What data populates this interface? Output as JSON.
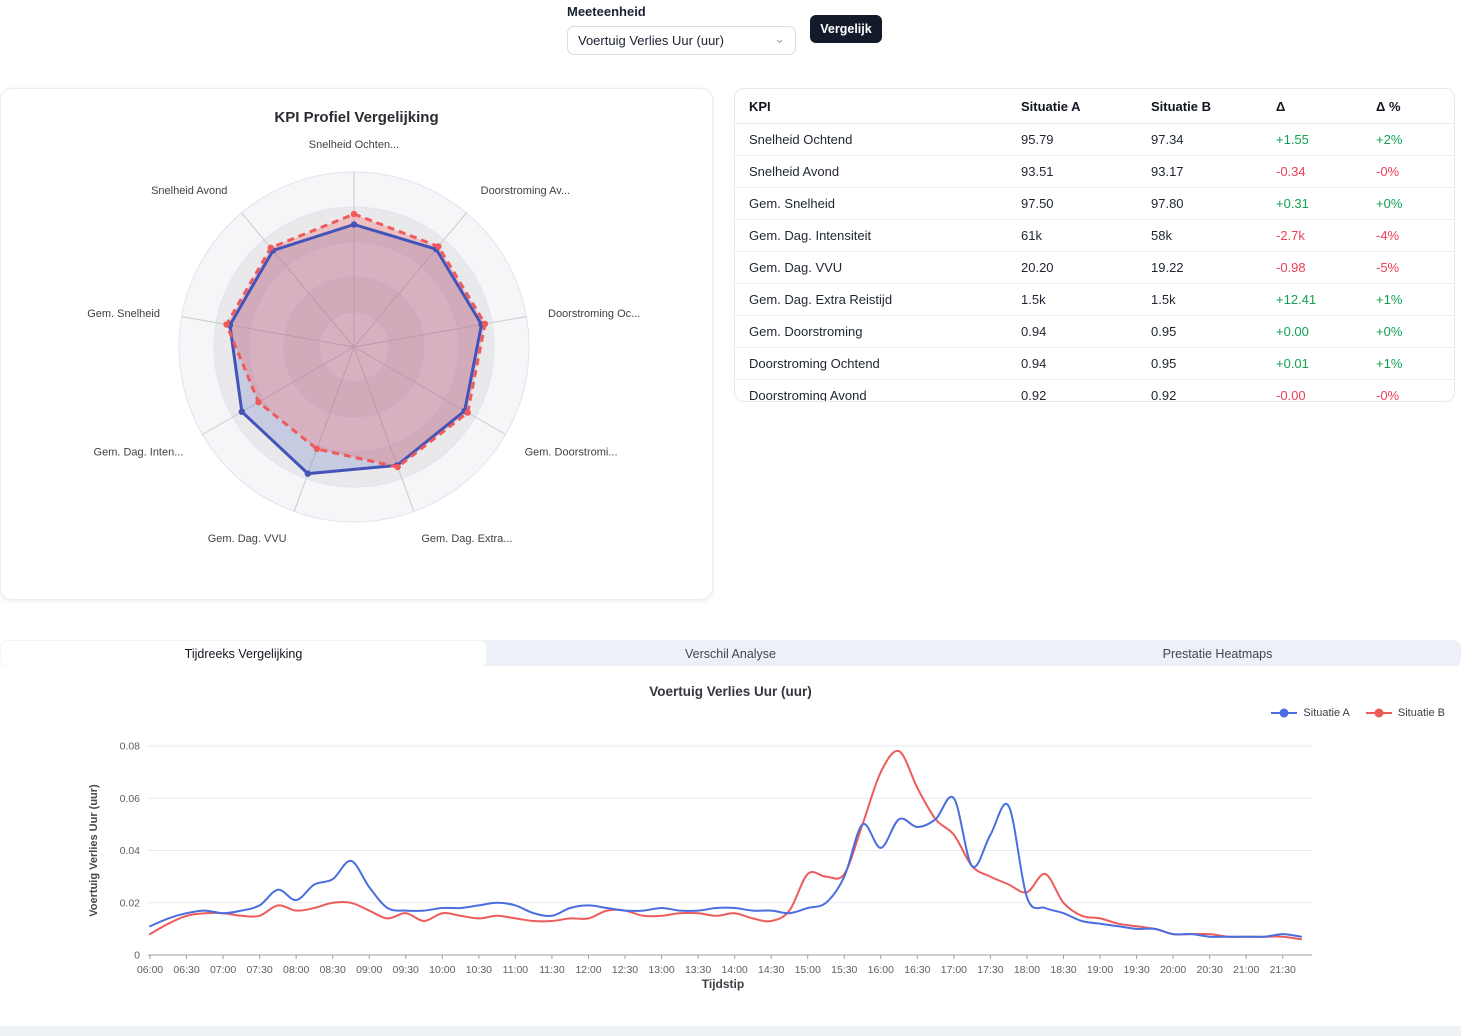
{
  "controls": {
    "label": "Meeteenheid",
    "dropdown_value": "Voertuig Verlies Uur (uur)",
    "compare_button": "Vergelijk"
  },
  "tabs": [
    {
      "label": "Tijdreeks Vergelijking",
      "active": true
    },
    {
      "label": "Verschil Analyse",
      "active": false
    },
    {
      "label": "Prestatie Heatmaps",
      "active": false
    }
  ],
  "kpi_table": {
    "columns": [
      "KPI",
      "Situatie A",
      "Situatie B",
      "Δ",
      "Δ %"
    ],
    "positive_color": "#12a150",
    "negative_color": "#ef4155",
    "rows": [
      {
        "kpi": "Snelheid Ochtend",
        "a": "95.79",
        "b": "97.34",
        "delta": "+1.55",
        "delta_pct": "+2%"
      },
      {
        "kpi": "Snelheid Avond",
        "a": "93.51",
        "b": "93.17",
        "delta": "-0.34",
        "delta_pct": "-0%"
      },
      {
        "kpi": "Gem. Snelheid",
        "a": "97.50",
        "b": "97.80",
        "delta": "+0.31",
        "delta_pct": "+0%"
      },
      {
        "kpi": "Gem. Dag. Intensiteit",
        "a": "61k",
        "b": "58k",
        "delta": "-2.7k",
        "delta_pct": "-4%"
      },
      {
        "kpi": "Gem. Dag. VVU",
        "a": "20.20",
        "b": "19.22",
        "delta": "-0.98",
        "delta_pct": "-5%"
      },
      {
        "kpi": "Gem. Dag. Extra Reistijd",
        "a": "1.5k",
        "b": "1.5k",
        "delta": "+12.41",
        "delta_pct": "+1%"
      },
      {
        "kpi": "Gem. Doorstroming",
        "a": "0.94",
        "b": "0.95",
        "delta": "+0.00",
        "delta_pct": "+0%"
      },
      {
        "kpi": "Doorstroming Ochtend",
        "a": "0.94",
        "b": "0.95",
        "delta": "+0.01",
        "delta_pct": "+1%"
      },
      {
        "kpi": "Doorstroming Avond",
        "a": "0.92",
        "b": "0.92",
        "delta": "-0.00",
        "delta_pct": "-0%"
      }
    ]
  },
  "chart_data": [
    {
      "type": "radar",
      "title": "KPI Profiel Vergelijking",
      "categories": [
        "Snelheid Ochten...",
        "Doorstroming Av...",
        "Doorstroming Oc...",
        "Gem. Doorstromi...",
        "Gem. Dag. Extra...",
        "Gem. Dag. VVU",
        "Gem. Dag. Inten...",
        "Gem. Snelheid",
        "Snelheid Avond"
      ],
      "rmax": 1,
      "rings": 5,
      "series": [
        {
          "name": "Situatie A",
          "color": "#4353b8",
          "fill": "rgba(67,83,184,0.20)",
          "dash": "none",
          "values": [
            0.7,
            0.73,
            0.74,
            0.73,
            0.72,
            0.77,
            0.74,
            0.72,
            0.72
          ]
        },
        {
          "name": "Situatie B",
          "color": "#f15a5a",
          "fill": "rgba(241,90,90,0.28)",
          "dash": "7 5",
          "values": [
            0.76,
            0.75,
            0.76,
            0.75,
            0.73,
            0.62,
            0.63,
            0.74,
            0.74
          ]
        }
      ]
    },
    {
      "type": "line",
      "title": "Voertuig Verlies Uur (uur)",
      "xlabel": "Tijdstip",
      "ylabel": "Voertuig Verlies Uur (uur)",
      "ylim": [
        0,
        0.08
      ],
      "yticks": [
        0,
        0.02,
        0.04,
        0.06,
        0.08
      ],
      "grid": true,
      "legend_position": "top-right",
      "x": [
        "06:00",
        "06:15",
        "06:30",
        "06:45",
        "07:00",
        "07:15",
        "07:30",
        "07:45",
        "08:00",
        "08:15",
        "08:30",
        "08:45",
        "09:00",
        "09:15",
        "09:30",
        "09:45",
        "10:00",
        "10:15",
        "10:30",
        "10:45",
        "11:00",
        "11:15",
        "11:30",
        "11:45",
        "12:00",
        "12:15",
        "12:30",
        "12:45",
        "13:00",
        "13:15",
        "13:30",
        "13:45",
        "14:00",
        "14:15",
        "14:30",
        "14:45",
        "15:00",
        "15:15",
        "15:30",
        "15:45",
        "16:00",
        "16:15",
        "16:30",
        "16:45",
        "17:00",
        "17:15",
        "17:30",
        "17:45",
        "18:00",
        "18:15",
        "18:30",
        "18:45",
        "19:00",
        "19:15",
        "19:30",
        "19:45",
        "20:00",
        "20:15",
        "20:30",
        "20:45",
        "21:00",
        "21:15",
        "21:30",
        "21:45"
      ],
      "series": [
        {
          "name": "Situatie B",
          "color": "#ee5b5b",
          "values": [
            0.008,
            0.012,
            0.015,
            0.016,
            0.016,
            0.015,
            0.015,
            0.019,
            0.017,
            0.018,
            0.02,
            0.02,
            0.017,
            0.014,
            0.016,
            0.013,
            0.016,
            0.015,
            0.014,
            0.015,
            0.014,
            0.013,
            0.013,
            0.014,
            0.014,
            0.017,
            0.017,
            0.015,
            0.015,
            0.016,
            0.016,
            0.015,
            0.016,
            0.014,
            0.013,
            0.017,
            0.031,
            0.03,
            0.031,
            0.05,
            0.07,
            0.078,
            0.064,
            0.052,
            0.046,
            0.034,
            0.03,
            0.027,
            0.024,
            0.031,
            0.02,
            0.015,
            0.014,
            0.012,
            0.011,
            0.01,
            0.008,
            0.008,
            0.008,
            0.007,
            0.007,
            0.007,
            0.007,
            0.006
          ]
        },
        {
          "name": "Situatie A",
          "color": "#4a6de0",
          "values": [
            0.011,
            0.014,
            0.016,
            0.017,
            0.016,
            0.017,
            0.019,
            0.025,
            0.021,
            0.027,
            0.029,
            0.036,
            0.026,
            0.018,
            0.017,
            0.017,
            0.018,
            0.018,
            0.019,
            0.02,
            0.019,
            0.016,
            0.015,
            0.018,
            0.019,
            0.018,
            0.017,
            0.017,
            0.018,
            0.017,
            0.017,
            0.018,
            0.018,
            0.017,
            0.017,
            0.016,
            0.018,
            0.02,
            0.03,
            0.05,
            0.041,
            0.052,
            0.049,
            0.052,
            0.06,
            0.034,
            0.046,
            0.057,
            0.022,
            0.018,
            0.016,
            0.013,
            0.012,
            0.011,
            0.01,
            0.01,
            0.008,
            0.008,
            0.007,
            0.007,
            0.007,
            0.007,
            0.008,
            0.007
          ]
        }
      ],
      "legend_order": [
        "Situatie A",
        "Situatie B"
      ]
    }
  ]
}
